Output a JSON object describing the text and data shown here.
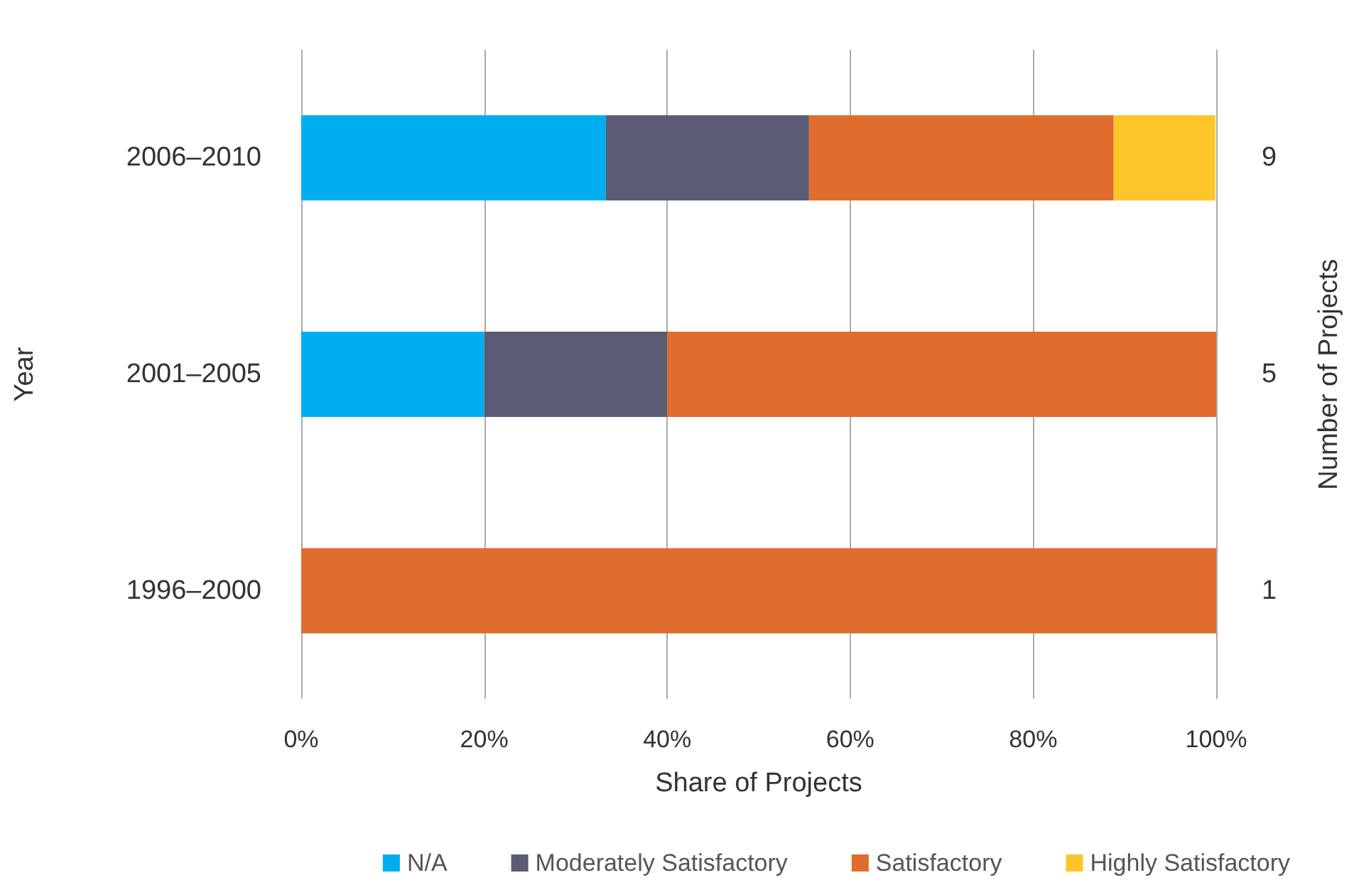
{
  "chart_data": {
    "type": "bar",
    "orientation": "horizontal",
    "stacked": true,
    "categories": [
      "2006–2010",
      "2001–2005",
      "1996–2000"
    ],
    "y2_categories": [
      "9",
      "5",
      "1"
    ],
    "series": [
      {
        "name": "N/A",
        "color": "#00aeef",
        "values": [
          33.3,
          20,
          0
        ]
      },
      {
        "name": "Moderately Satisfactory",
        "color": "#5b5b73",
        "values": [
          22.2,
          20,
          0
        ]
      },
      {
        "name": "Satisfactory",
        "color": "#e06c2e",
        "values": [
          33.3,
          60,
          100
        ]
      },
      {
        "name": "Highly Satisfactory",
        "color": "#fdc52a",
        "values": [
          11.1,
          0,
          0
        ]
      }
    ],
    "xlim": [
      0,
      100
    ],
    "xticks": [
      {
        "value": 0,
        "label": "0%"
      },
      {
        "value": 20,
        "label": "20%"
      },
      {
        "value": 40,
        "label": "40%"
      },
      {
        "value": 60,
        "label": "60%"
      },
      {
        "value": 80,
        "label": "80%"
      },
      {
        "value": 100,
        "label": "100%"
      }
    ],
    "xlabel": "Share of Projects",
    "ylabel": "Year",
    "y2label": "Number of Projects",
    "grid": "x",
    "legend": "bottom"
  }
}
